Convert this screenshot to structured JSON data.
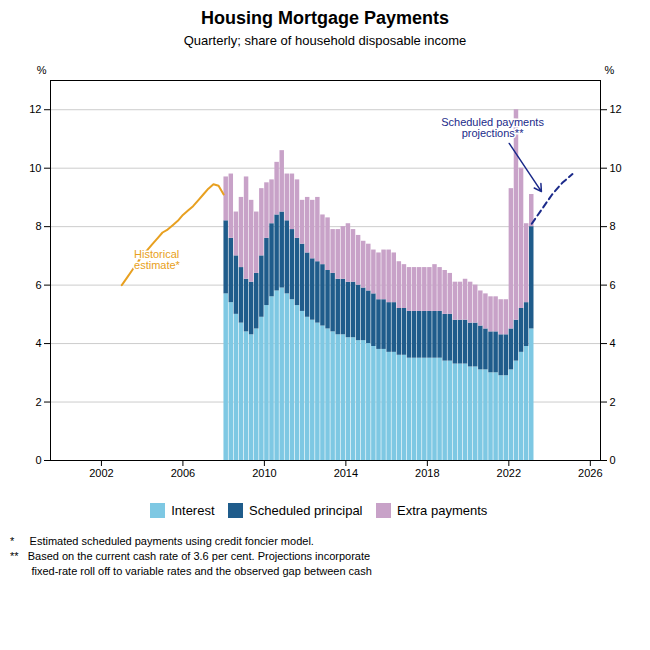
{
  "chart_data": {
    "type": "bar",
    "stacked": true,
    "title": "Housing Mortgage Payments",
    "subtitle": "Quarterly; share of household disposable income",
    "ylabel": "%",
    "y2label": "%",
    "x": [
      2008.125,
      2008.375,
      2008.625,
      2008.875,
      2009.125,
      2009.375,
      2009.625,
      2009.875,
      2010.125,
      2010.375,
      2010.625,
      2010.875,
      2011.125,
      2011.375,
      2011.625,
      2011.875,
      2012.125,
      2012.375,
      2012.625,
      2012.875,
      2013.125,
      2013.375,
      2013.625,
      2013.875,
      2014.125,
      2014.375,
      2014.625,
      2014.875,
      2015.125,
      2015.375,
      2015.625,
      2015.875,
      2016.125,
      2016.375,
      2016.625,
      2016.875,
      2017.125,
      2017.375,
      2017.625,
      2017.875,
      2018.125,
      2018.375,
      2018.625,
      2018.875,
      2019.125,
      2019.375,
      2019.625,
      2019.875,
      2020.125,
      2020.375,
      2020.625,
      2020.875,
      2021.125,
      2021.375,
      2021.625,
      2021.875,
      2022.125,
      2022.375,
      2022.625,
      2022.875,
      2023.125
    ],
    "series": [
      {
        "name": "Interest",
        "color": "#7EC8E3",
        "values": [
          5.7,
          5.4,
          5.0,
          4.7,
          4.4,
          4.3,
          4.5,
          4.9,
          5.3,
          5.6,
          5.8,
          5.9,
          5.7,
          5.5,
          5.3,
          5.1,
          4.9,
          4.8,
          4.7,
          4.6,
          4.5,
          4.4,
          4.3,
          4.3,
          4.2,
          4.2,
          4.1,
          4.1,
          4.0,
          3.9,
          3.8,
          3.8,
          3.7,
          3.7,
          3.6,
          3.6,
          3.5,
          3.5,
          3.5,
          3.5,
          3.5,
          3.5,
          3.5,
          3.4,
          3.4,
          3.3,
          3.3,
          3.3,
          3.2,
          3.2,
          3.1,
          3.1,
          3.0,
          3.0,
          2.9,
          2.9,
          3.1,
          3.4,
          3.7,
          3.9,
          4.5
        ]
      },
      {
        "name": "Scheduled principal",
        "color": "#1F5C8B",
        "values": [
          2.5,
          2.2,
          2.0,
          1.9,
          1.8,
          1.8,
          1.9,
          2.1,
          2.3,
          2.5,
          2.6,
          2.6,
          2.5,
          2.4,
          2.3,
          2.3,
          2.2,
          2.1,
          2.1,
          2.1,
          2.0,
          2.0,
          1.9,
          1.9,
          1.9,
          1.9,
          1.9,
          1.8,
          1.8,
          1.8,
          1.7,
          1.7,
          1.7,
          1.7,
          1.6,
          1.6,
          1.6,
          1.6,
          1.6,
          1.6,
          1.6,
          1.6,
          1.6,
          1.6,
          1.6,
          1.5,
          1.5,
          1.5,
          1.5,
          1.5,
          1.5,
          1.4,
          1.4,
          1.4,
          1.4,
          1.4,
          1.4,
          1.4,
          1.5,
          1.5,
          3.5
        ]
      },
      {
        "name": "Extra payments",
        "color": "#C8A2C8",
        "values": [
          1.5,
          2.2,
          1.5,
          2.4,
          3.5,
          2.8,
          2.1,
          2.3,
          1.9,
          1.5,
          1.8,
          2.1,
          1.6,
          1.9,
          2.0,
          1.5,
          1.9,
          2.0,
          2.2,
          1.7,
          1.8,
          1.5,
          1.7,
          1.8,
          2.0,
          1.8,
          1.7,
          1.6,
          1.6,
          1.5,
          1.6,
          1.7,
          1.8,
          1.7,
          1.6,
          1.5,
          1.5,
          1.5,
          1.5,
          1.5,
          1.5,
          1.6,
          1.5,
          1.5,
          1.4,
          1.3,
          1.3,
          1.4,
          1.4,
          1.3,
          1.2,
          1.2,
          1.2,
          1.2,
          1.2,
          1.2,
          4.8,
          7.2,
          4.8,
          2.7,
          1.1
        ]
      },
      {
        "type": "line",
        "line_style": "solid",
        "color": "#E8A020",
        "x": [
          2003.0,
          2003.25,
          2003.5,
          2003.75,
          2004.0,
          2004.25,
          2004.5,
          2004.75,
          2005.0,
          2005.25,
          2005.5,
          2005.75,
          2006.0,
          2006.25,
          2006.5,
          2006.75,
          2007.0,
          2007.25,
          2007.5,
          2007.75,
          2008.0
        ],
        "values": [
          6.0,
          6.25,
          6.5,
          6.75,
          7.0,
          7.2,
          7.4,
          7.6,
          7.8,
          7.9,
          8.05,
          8.2,
          8.4,
          8.55,
          8.7,
          8.9,
          9.1,
          9.3,
          9.45,
          9.4,
          9.1
        ]
      },
      {
        "type": "line",
        "line_style": "dashed",
        "color": "#1B2A8A",
        "x": [
          2023.125,
          2023.625,
          2024.125,
          2024.625,
          2025.125
        ],
        "values": [
          8.1,
          8.6,
          9.1,
          9.5,
          9.8
        ]
      }
    ],
    "xlim": [
      1999.5,
      2026.5
    ],
    "xticks": [
      2002,
      2006,
      2010,
      2014,
      2018,
      2022,
      2026
    ],
    "ylim": [
      0,
      13
    ],
    "yticks": [
      0,
      2,
      4,
      6,
      8,
      10,
      12
    ],
    "y2lim": [
      0,
      13
    ],
    "y2ticks": [
      0,
      2,
      4,
      6,
      8,
      10,
      12
    ],
    "grid": true,
    "legend": "bottom",
    "annotations": [
      {
        "text": "Historical\nestimate*",
        "x": 2003.6,
        "y": 7.2,
        "color": "#E8A020"
      },
      {
        "text": "Scheduled payments\nprojections**",
        "x": 2021.2,
        "y": 11.7,
        "arrow_x": 2023.6,
        "arrow_y": 9.2,
        "color": "#1B2A8A"
      }
    ],
    "footnotes": [
      "*     Estimated scheduled payments using credit foncier model.",
      "**   Based on the current cash rate of 3.6 per cent. Projections incorporate",
      "       fixed-rate roll off to variable rates and the observed gap between cash"
    ]
  }
}
